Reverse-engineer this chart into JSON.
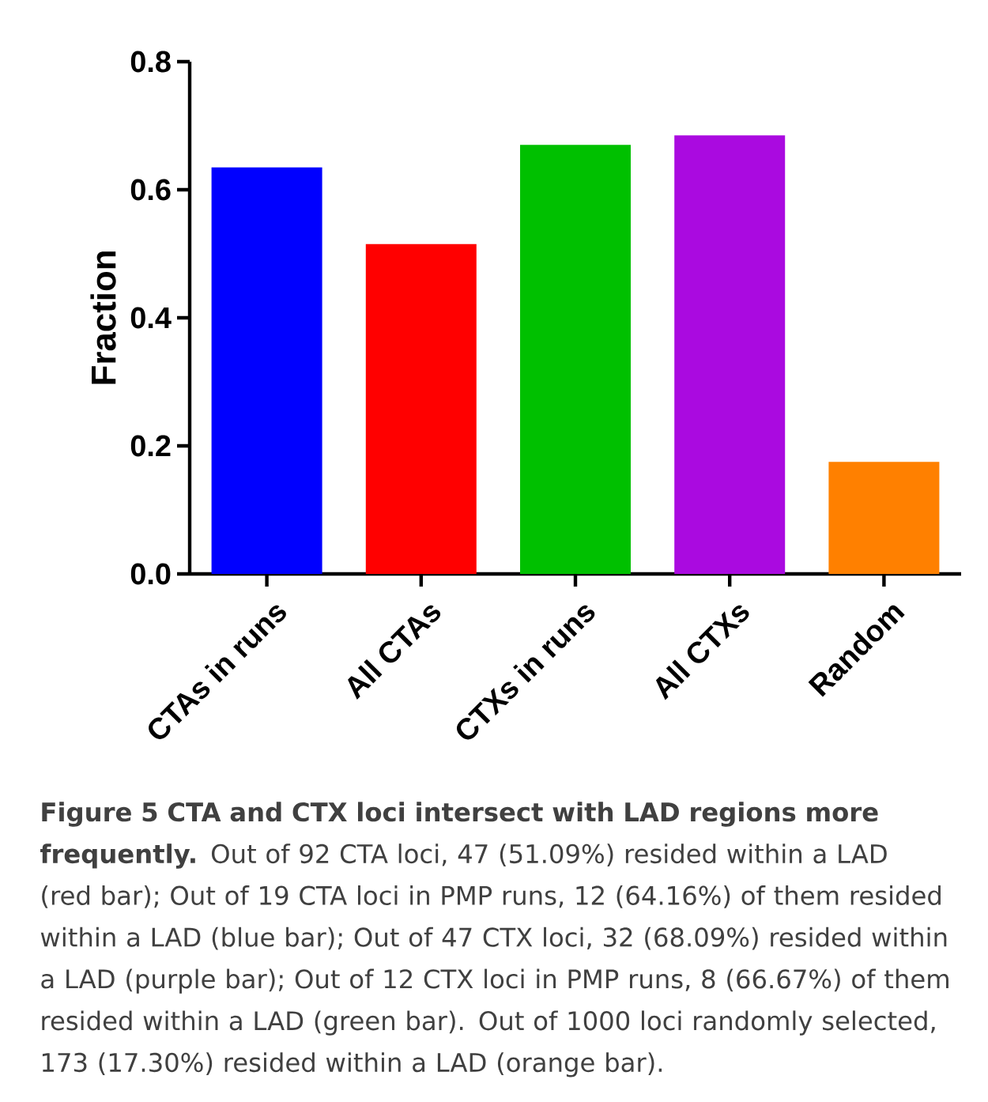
{
  "chart_data": {
    "type": "bar",
    "ylabel": "Fraction",
    "categories": [
      "CTAs in runs",
      "All CTAs",
      "CTXs in runs",
      "All CTXs",
      "Random"
    ],
    "values": [
      0.635,
      0.515,
      0.67,
      0.685,
      0.175
    ],
    "colors": [
      "#0000ff",
      "#ff0000",
      "#00c000",
      "#aa0ae0",
      "#ff8000"
    ],
    "ylim": [
      0,
      0.8
    ],
    "yticks": [
      {
        "value": 0,
        "label": "0.0"
      },
      0.2,
      0.4,
      0.6,
      0.8
    ],
    "annotations": [
      "**Figure 5 CTA and CTX loci intersect with LAD regions more frequently.** Out of 92 CTA loci, 47 (51.09%) resided within a LAD (red bar); Out of 19 CTA loci in PMP runs, 12 (64.16%) of them resided within a LAD (blue bar); Out of 47 CTX loci, 32 (68.09%) resided within a LAD (purple bar); Out of 12 CTX loci in PMP runs, 8 (66.67%) of them resided within a LAD (green bar). Out of 1000 loci randomly selected, 173 (17.30%) resided within a LAD (orange bar)."
    ]
  }
}
